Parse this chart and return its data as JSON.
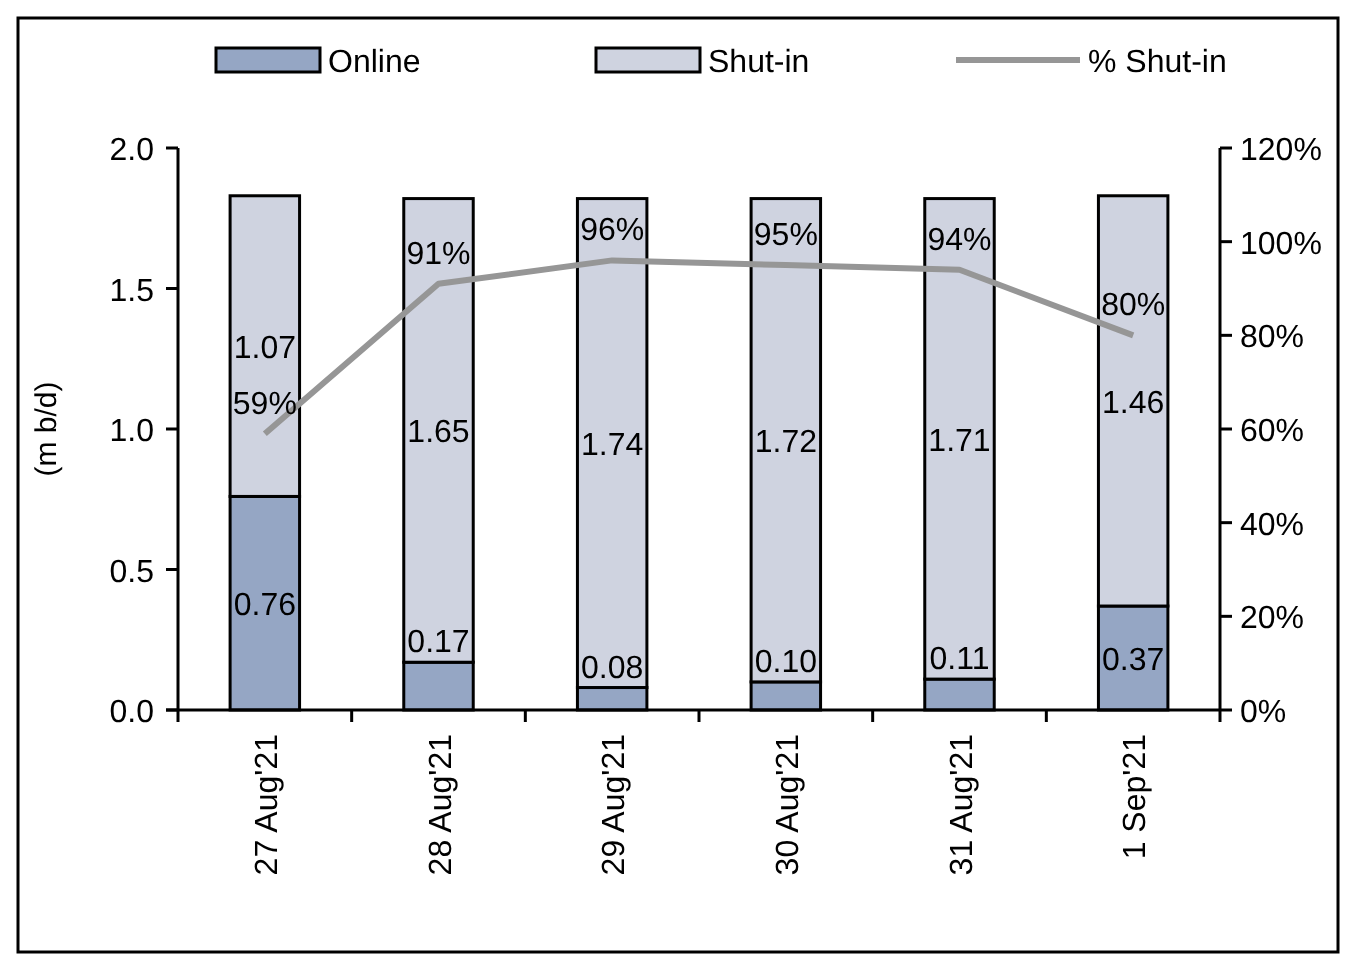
{
  "chart_data": {
    "type": "bar",
    "stacked": true,
    "ylabel": "(m b/d)",
    "categories": [
      "27 Aug'21",
      "28 Aug'21",
      "29 Aug'21",
      "30 Aug'21",
      "31 Aug'21",
      "1 Sep'21"
    ],
    "series": [
      {
        "name": "Online",
        "color": "#95a6c4",
        "values": [
          0.76,
          0.17,
          0.08,
          0.1,
          0.11,
          0.37
        ],
        "value_labels": [
          "0.76",
          "0.17",
          "0.08",
          "0.10",
          "0.11",
          "0.37"
        ]
      },
      {
        "name": "Shut-in",
        "color": "#cfd3e0",
        "values": [
          1.07,
          1.65,
          1.74,
          1.72,
          1.71,
          1.46
        ]
      },
      {
        "name": "% Shut-in",
        "type": "line",
        "axis": "y2",
        "color": "#969696",
        "values": [
          59,
          91,
          96,
          95,
          94,
          80
        ],
        "value_labels": [
          "59%",
          "91%",
          "96%",
          "95%",
          "94%",
          "80%"
        ]
      }
    ],
    "ylim": [
      0,
      2.0
    ],
    "yticks": [
      {
        "value": 0,
        "label": "0.0"
      },
      0.5,
      {
        "value": 1,
        "label": "1.0"
      },
      1.5,
      {
        "value": 2,
        "label": "2.0"
      }
    ],
    "y2lim": [
      0,
      120
    ],
    "y2ticks": [
      {
        "value": 0,
        "label": "0%"
      },
      {
        "value": 20,
        "label": "20%"
      },
      {
        "value": 40,
        "label": "40%"
      },
      {
        "value": 60,
        "label": "60%"
      },
      {
        "value": 80,
        "label": "80%"
      },
      {
        "value": 100,
        "label": "100%"
      },
      {
        "value": 120,
        "label": "120%"
      }
    ],
    "data_labels": true,
    "legend": "top",
    "grid": false,
    "marker": "none",
    "line_style": "solid"
  }
}
